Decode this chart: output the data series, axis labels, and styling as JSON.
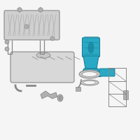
{
  "background_color": "#f5f5f5",
  "highlight_color": "#29a9c5",
  "part_color": "#b0b0b0",
  "part_edge": "#888888",
  "line_color": "#888888",
  "figsize": [
    2.0,
    2.0
  ],
  "dpi": 100
}
